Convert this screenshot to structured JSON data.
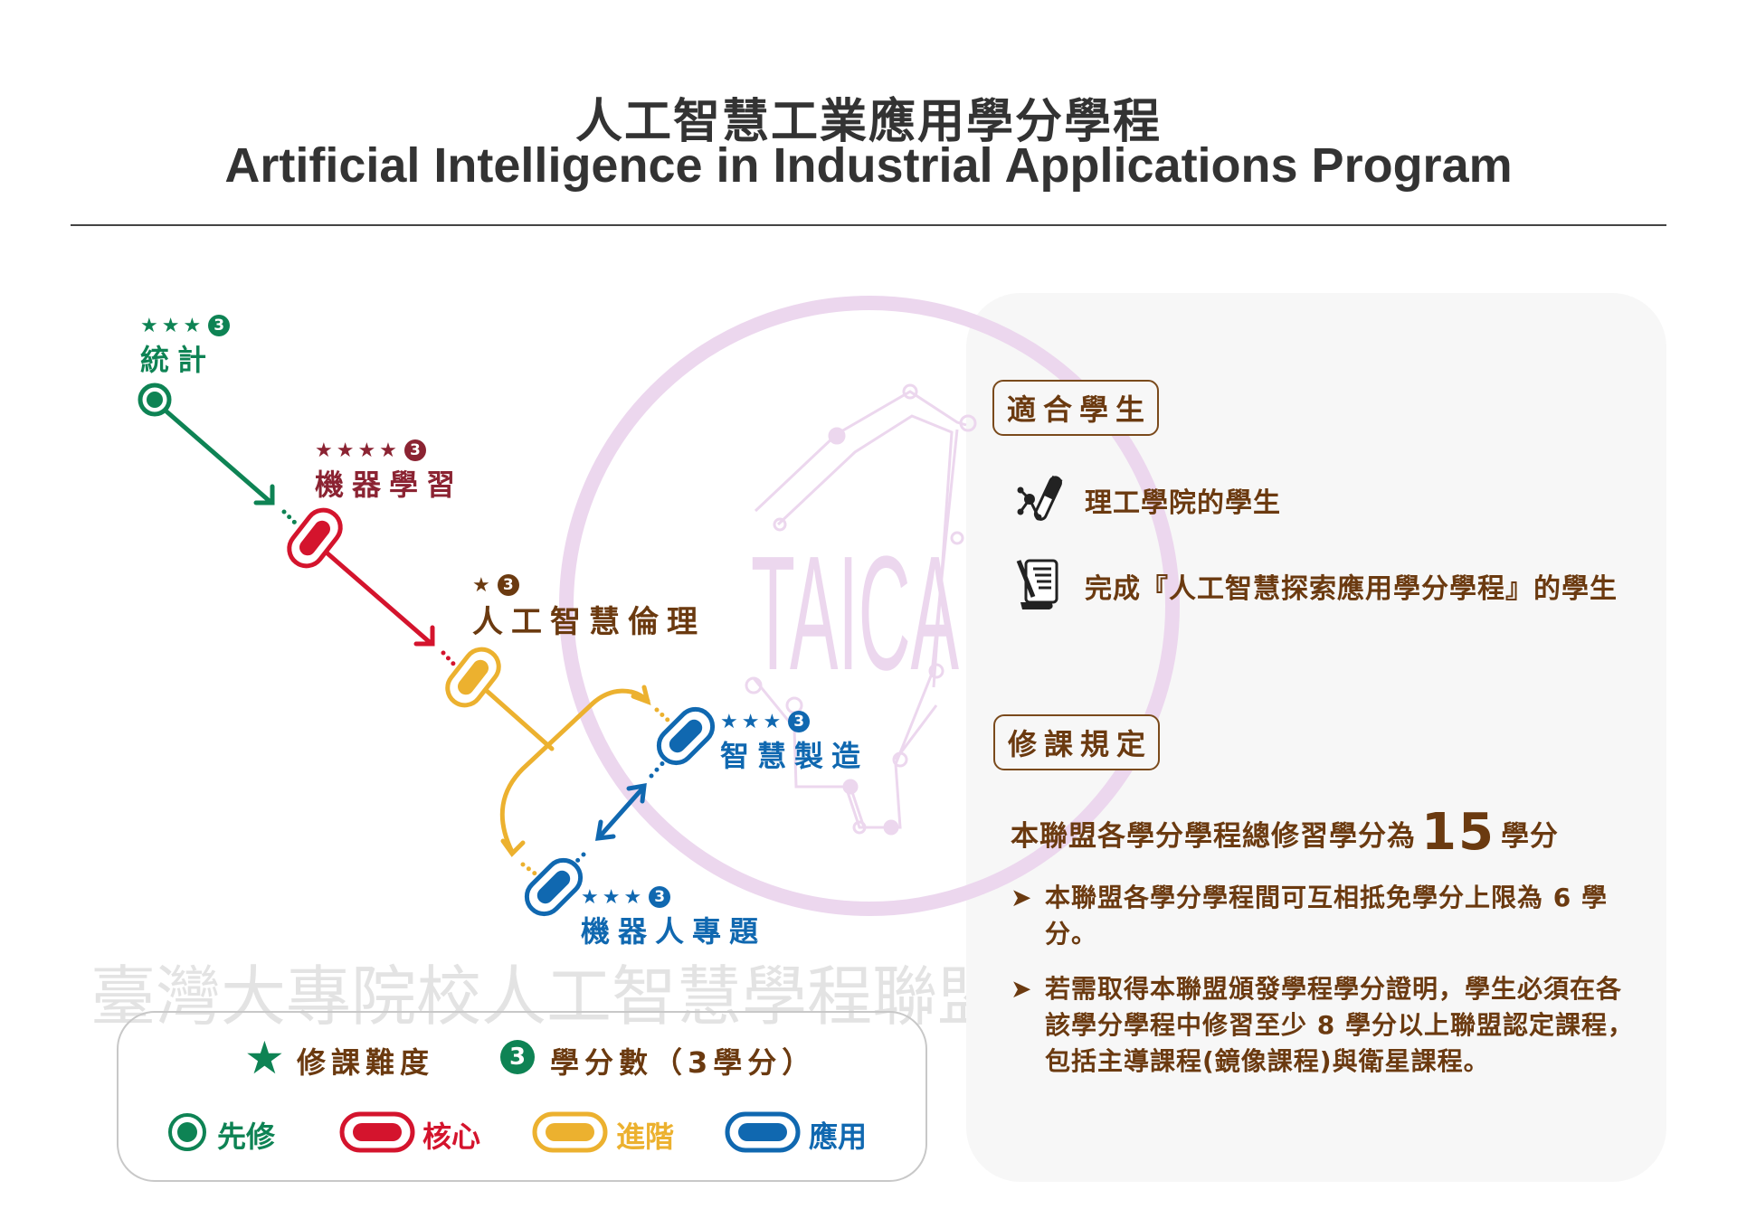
{
  "title": {
    "zh": "人工智慧工業應用學分學程",
    "en": "Artificial Intelligence in Industrial Applications Program"
  },
  "watermark": "臺灣大專院校人工智慧學程聯盟",
  "logo_text": "TAICA",
  "colors": {
    "prerequisite": "#0e8354",
    "core": "#d4142d",
    "core_label": "#8b2332",
    "advanced": "#ecb12f",
    "advanced_label": "#6b3a10",
    "applied": "#1068b0",
    "text_brown": "#6b3a10",
    "logo": "#ecd7ee",
    "panel_bg": "#f7f7f7"
  },
  "courses": [
    {
      "name": "統計",
      "stars": 3,
      "credits": "3",
      "type": "prerequisite"
    },
    {
      "name": "機器學習",
      "stars": 4,
      "credits": "3",
      "type": "core"
    },
    {
      "name": "人工智慧倫理",
      "stars": 1,
      "credits": "3",
      "type": "advanced"
    },
    {
      "name": "智慧製造",
      "stars": 3,
      "credits": "3",
      "type": "applied"
    },
    {
      "name": "機器人專題",
      "stars": 3,
      "credits": "3",
      "type": "applied"
    }
  ],
  "panel": {
    "suitable_heading": "適合學生",
    "suitable": [
      {
        "icon": "science-test-tube-icon",
        "text": "理工學院的學生"
      },
      {
        "icon": "certificate-scroll-icon",
        "text": "完成『人工智慧探索應用學分學程』的學生"
      }
    ],
    "rules_heading": "修課規定",
    "total_prefix": "本聯盟各學分學程總修習學分為",
    "total_credits": "15",
    "total_suffix": "學分",
    "bullets": [
      "本聯盟各學分學程間可互相抵免學分上限為 6 學分。",
      "若需取得本聯盟頒發學程學分證明，學生必須在各該學分學程中修習至少 8 學分以上聯盟認定課程，包括主導課程(鏡像課程)與衛星課程。"
    ]
  },
  "legend": {
    "difficulty": "修課難度",
    "credits_badge": "3",
    "credits": "學分數（3學分）",
    "types": [
      {
        "key": "prerequisite",
        "label": "先修"
      },
      {
        "key": "core",
        "label": "核心"
      },
      {
        "key": "advanced",
        "label": "進階"
      },
      {
        "key": "applied",
        "label": "應用"
      }
    ]
  }
}
